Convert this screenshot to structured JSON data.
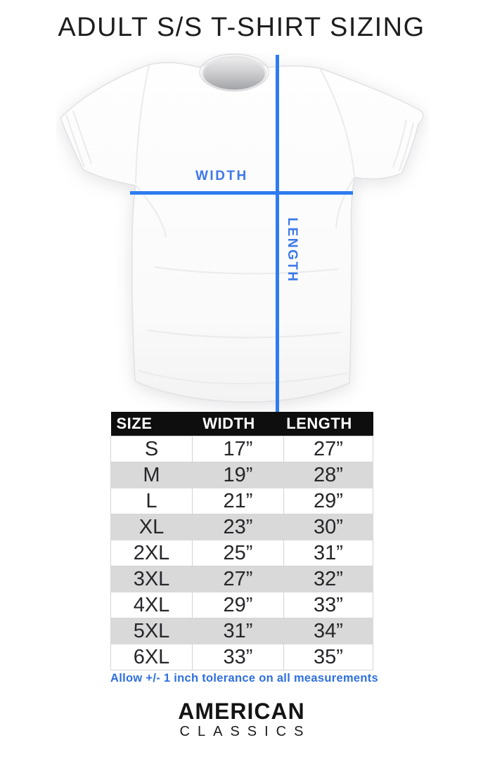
{
  "title": "ADULT S/S T-SHIRT SIZING",
  "diagram": {
    "width_label": "WIDTH",
    "length_label": "LENGTH"
  },
  "table": {
    "columns": {
      "size": "SIZE",
      "width": "WIDTH",
      "length": "LENGTH"
    },
    "rows": [
      {
        "size": "S",
        "width": "17”",
        "length": "27”"
      },
      {
        "size": "M",
        "width": "19”",
        "length": "28”"
      },
      {
        "size": "L",
        "width": "21”",
        "length": "29”"
      },
      {
        "size": "XL",
        "width": "23”",
        "length": "30”"
      },
      {
        "size": "2XL",
        "width": "25”",
        "length": "31”"
      },
      {
        "size": "3XL",
        "width": "27”",
        "length": "32”"
      },
      {
        "size": "4XL",
        "width": "29”",
        "length": "33”"
      },
      {
        "size": "5XL",
        "width": "31”",
        "length": "34”"
      },
      {
        "size": "6XL",
        "width": "33”",
        "length": "35”"
      }
    ]
  },
  "tolerance_note": "Allow +/- 1 inch tolerance on all measurements",
  "brand": {
    "line1": "AMERICAN",
    "line2": "CLASSICS"
  },
  "colors": {
    "line_blue": "#2e7cf0",
    "label_blue": "#3d78e8",
    "note_blue": "#2e6fdf",
    "header_bg": "#0e0e0e",
    "row_alt_gray": "#d9d9d9"
  }
}
